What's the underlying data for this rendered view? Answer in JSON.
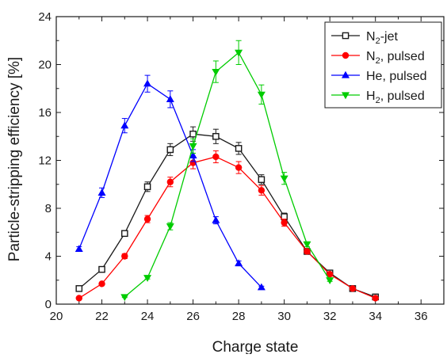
{
  "chart_data": {
    "type": "scatter",
    "xlabel": "Charge state",
    "ylabel": "Particle-stripping efficiency [%]",
    "xlim": [
      20,
      37
    ],
    "ylim": [
      0,
      24
    ],
    "xticks": [
      20,
      22,
      24,
      26,
      28,
      30,
      32,
      34,
      36
    ],
    "yticks": [
      0,
      4,
      8,
      12,
      16,
      20,
      24
    ],
    "grid": false,
    "legend_position": "top-right",
    "series": [
      {
        "key": "n2-jet",
        "name": "N",
        "name_sub": "2",
        "name_suffix": "-jet",
        "color": "#1a1a1a",
        "marker": "square-open",
        "x": [
          21,
          22,
          23,
          24,
          25,
          26,
          27,
          28,
          29,
          30,
          31,
          32,
          33,
          34
        ],
        "y": [
          1.3,
          2.9,
          5.9,
          9.8,
          12.9,
          14.2,
          14.0,
          13.0,
          10.4,
          7.3,
          4.4,
          2.6,
          1.3,
          0.6
        ],
        "yerr": [
          0.1,
          0.2,
          0.2,
          0.4,
          0.5,
          0.6,
          0.6,
          0.5,
          0.4,
          0.3,
          0.2,
          0.1,
          0.1,
          0.05
        ]
      },
      {
        "key": "n2-pulsed",
        "name": "N",
        "name_sub": "2",
        "name_suffix": ", pulsed",
        "color": "#ff0000",
        "marker": "circle",
        "x": [
          21,
          22,
          23,
          24,
          25,
          26,
          27,
          28,
          29,
          30,
          31,
          32,
          33,
          34
        ],
        "y": [
          0.5,
          1.7,
          4.0,
          7.1,
          10.2,
          11.8,
          12.3,
          11.4,
          9.5,
          6.8,
          4.4,
          2.5,
          1.3,
          0.5
        ],
        "yerr": [
          0.05,
          0.1,
          0.2,
          0.3,
          0.4,
          0.5,
          0.5,
          0.5,
          0.4,
          0.3,
          0.2,
          0.1,
          0.1,
          0.05
        ]
      },
      {
        "key": "he-pulsed",
        "name": "He, pulsed",
        "name_sub": "",
        "name_suffix": "",
        "color": "#0000ff",
        "marker": "triangle-up",
        "x": [
          21,
          22,
          23,
          24,
          25,
          26,
          27,
          28,
          29
        ],
        "y": [
          4.6,
          9.3,
          14.9,
          18.4,
          17.1,
          12.4,
          7.0,
          3.4,
          1.4
        ],
        "yerr": [
          0.2,
          0.4,
          0.6,
          0.7,
          0.7,
          0.5,
          0.3,
          0.2,
          0.1
        ]
      },
      {
        "key": "h2-pulsed",
        "name": "H",
        "name_sub": "2",
        "name_suffix": ", pulsed",
        "color": "#00cc00",
        "marker": "triangle-down",
        "x": [
          23,
          24,
          25,
          26,
          27,
          28,
          29,
          30,
          31,
          32
        ],
        "y": [
          0.6,
          2.2,
          6.5,
          13.2,
          19.4,
          21.0,
          17.5,
          10.5,
          5.0,
          2.0
        ],
        "yerr": [
          0.05,
          0.1,
          0.3,
          0.6,
          0.9,
          1.0,
          0.8,
          0.5,
          0.2,
          0.1
        ]
      }
    ]
  }
}
